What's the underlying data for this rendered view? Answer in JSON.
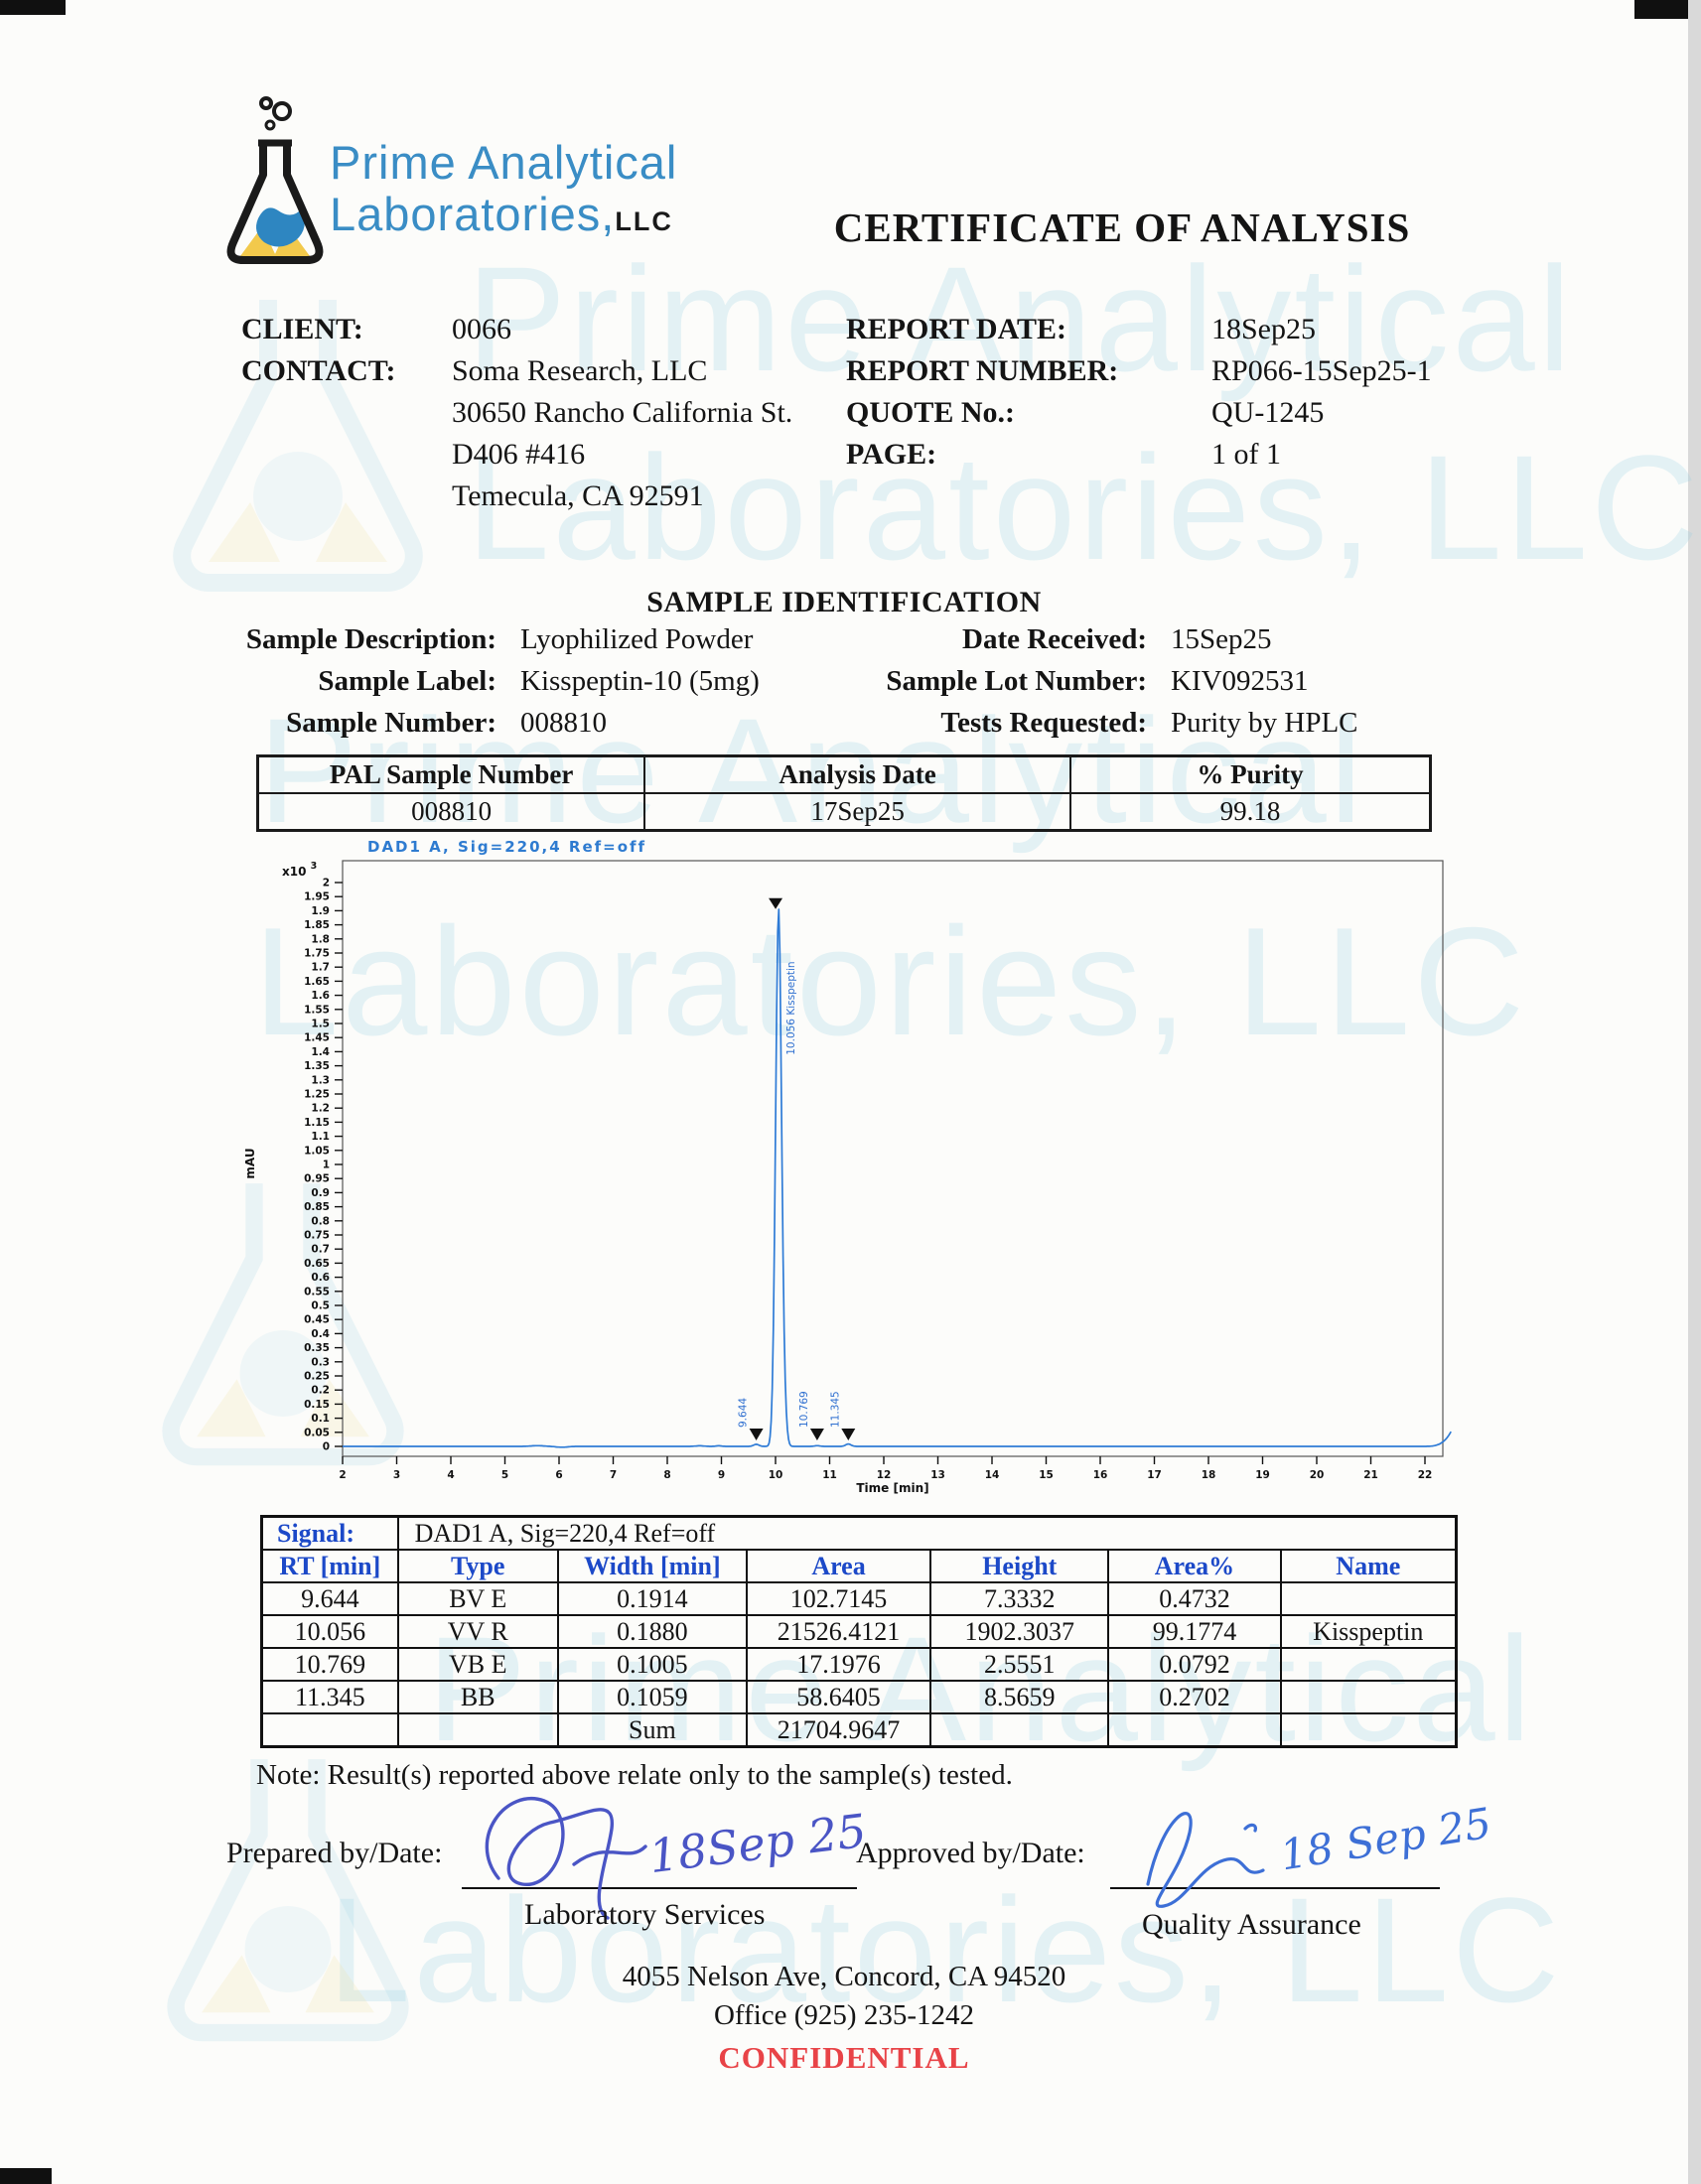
{
  "header": {
    "logo_line1": "Prime Analytical",
    "logo_line2": "Laboratories,",
    "logo_suffix": "LLC",
    "title": "CERTIFICATE OF ANALYSIS"
  },
  "watermark": {
    "line1": "Prime Analytical",
    "line2": "Laboratories, LLC"
  },
  "client_info": {
    "client_label": "CLIENT:",
    "client_value": "0066",
    "contact_label": "CONTACT:",
    "contact_lines": [
      "Soma Research, LLC",
      "30650 Rancho California St.",
      "D406 #416",
      "Temecula, CA 92591"
    ]
  },
  "report_info": {
    "rows": [
      {
        "label": "REPORT DATE:",
        "value": "18Sep25"
      },
      {
        "label": "REPORT NUMBER:",
        "value": "RP066-15Sep25-1"
      },
      {
        "label": "QUOTE No.:",
        "value": "QU-1245"
      },
      {
        "label": "PAGE:",
        "value": "1 of 1"
      }
    ]
  },
  "sample_identification": {
    "heading": "SAMPLE IDENTIFICATION",
    "left": [
      {
        "label": "Sample Description:",
        "value": "Lyophilized Powder"
      },
      {
        "label": "Sample Label:",
        "value": "Kisspeptin-10 (5mg)"
      },
      {
        "label": "Sample Number:",
        "value": "008810"
      }
    ],
    "right": [
      {
        "label": "Date Received:",
        "value": "15Sep25"
      },
      {
        "label": "Sample Lot Number:",
        "value": "KIV092531"
      },
      {
        "label": "Tests Requested:",
        "value": "Purity by HPLC"
      }
    ]
  },
  "purity_table": {
    "headers": [
      "PAL Sample Number",
      "Analysis Date",
      "% Purity"
    ],
    "row": [
      "008810",
      "17Sep25",
      "99.18"
    ]
  },
  "chart_data": {
    "type": "line",
    "title": "DAD1 A, Sig=220,4 Ref=off",
    "xlabel": "Time [min]",
    "ylabel": "mAU",
    "y_multiplier_base": "x10",
    "y_multiplier_exp": "3",
    "xlim": [
      2,
      22.5
    ],
    "ylim_mAU": [
      0,
      2050
    ],
    "x_tick_min": 2,
    "x_tick_max": 22,
    "x_tick_step": 1,
    "y_tick_step_mAU": 50,
    "baseline_mAU": 0,
    "grid": false,
    "trace_color": "#2e7bd6",
    "peaks": [
      {
        "rt": 9.644,
        "height": 7.3332,
        "label": "9.644"
      },
      {
        "rt": 10.056,
        "height": 1902.3037,
        "label": "10.056 Kisspeptin"
      },
      {
        "rt": 10.769,
        "height": 2.5551,
        "label": "10.769"
      },
      {
        "rt": 11.345,
        "height": 8.5659,
        "label": "11.345"
      }
    ]
  },
  "signal_table": {
    "signal_label": "Signal:",
    "signal_value": "DAD1 A, Sig=220,4 Ref=off",
    "headers": [
      "RT [min]",
      "Type",
      "Width [min]",
      "Area",
      "Height",
      "Area%",
      "Name"
    ],
    "rows": [
      [
        "9.644",
        "BV E",
        "0.1914",
        "102.7145",
        "7.3332",
        "0.4732",
        ""
      ],
      [
        "10.056",
        "VV R",
        "0.1880",
        "21526.4121",
        "1902.3037",
        "99.1774",
        "Kisspeptin"
      ],
      [
        "10.769",
        "VB E",
        "0.1005",
        "17.1976",
        "2.5551",
        "0.0792",
        ""
      ],
      [
        "11.345",
        "BB",
        "0.1059",
        "58.6405",
        "8.5659",
        "0.2702",
        ""
      ],
      [
        "",
        "",
        "Sum",
        "21704.9647",
        "",
        "",
        ""
      ]
    ]
  },
  "note": "Note: Result(s) reported above relate only to the sample(s) tested.",
  "signatures": {
    "prepared_label": "Prepared by/Date:",
    "prepared_date": "18Sep 25",
    "prepared_role": "Laboratory Services",
    "approved_label": "Approved by/Date:",
    "approved_date": "18 Sep 25",
    "approved_role": "Quality Assurance"
  },
  "footer": {
    "address": "4055 Nelson Ave, Concord, CA 94520",
    "phone": "Office (925) 235-1242",
    "confidential": "CONFIDENTIAL"
  }
}
